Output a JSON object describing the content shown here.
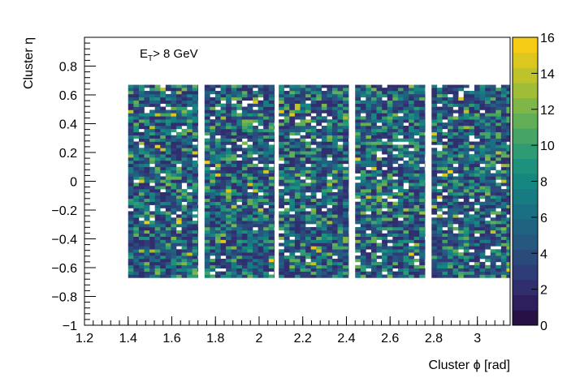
{
  "chart_data": {
    "type": "heatmap",
    "annotation": {
      "main": "E",
      "sub": "T",
      "rest": "> 8 GeV"
    },
    "xlabel": "Cluster ϕ [rad]",
    "ylabel": "Cluster η",
    "xlim": [
      1.2,
      3.15
    ],
    "ylim": [
      -1.0,
      1.0
    ],
    "xticks": [
      1.2,
      1.4,
      1.6,
      1.8,
      2.0,
      2.2,
      2.4,
      2.6,
      2.8,
      3.0
    ],
    "xtick_labels": [
      "1.2",
      "1.4",
      "1.6",
      "1.8",
      "2",
      "2.2",
      "2.4",
      "2.6",
      "2.8",
      "3"
    ],
    "yticks": [
      -1.0,
      -0.8,
      -0.6,
      -0.4,
      -0.2,
      0.0,
      0.2,
      0.4,
      0.6,
      0.8
    ],
    "ytick_labels": [
      "−1",
      "−0.8",
      "−0.6",
      "−0.4",
      "−0.2",
      "0",
      "0.2",
      "0.4",
      "0.6",
      "0.8"
    ],
    "colorbar": {
      "zlim": [
        0,
        16
      ],
      "ticks": [
        0,
        2,
        4,
        6,
        8,
        10,
        12,
        14,
        16
      ],
      "tick_labels": [
        "0",
        "2",
        "4",
        "6",
        "8",
        "10",
        "12",
        "14",
        "16"
      ]
    },
    "bins": {
      "phi_width": 0.0245,
      "eta_width": 0.022,
      "eta_range": [
        -0.67,
        0.67
      ]
    },
    "sectors_phi": [
      [
        1.4,
        1.72
      ],
      [
        1.75,
        2.07
      ],
      [
        2.09,
        2.41
      ],
      [
        2.44,
        2.76
      ],
      [
        2.79,
        3.15
      ]
    ],
    "typical_count_range": [
      2,
      12
    ],
    "colors": [
      "#271043",
      "#2d1e5e",
      "#302e6e",
      "#2e3c78",
      "#2a4a7c",
      "#25577f",
      "#1f6381",
      "#1b6f82",
      "#177b82",
      "#168681",
      "#1e917c",
      "#2f9b73",
      "#46a566",
      "#62ae57",
      "#80b647",
      "#9fbd37",
      "#bec329",
      "#dcc71e",
      "#f5cb16"
    ]
  }
}
